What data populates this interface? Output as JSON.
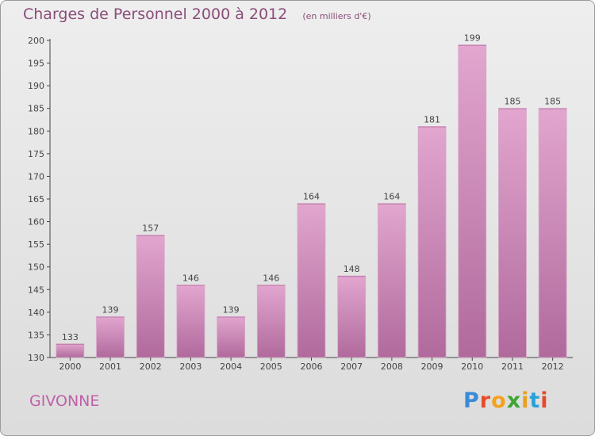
{
  "header": {
    "title": "Charges de Personnel 2000 à 2012",
    "unit": "(en milliers d'€)"
  },
  "footer": {
    "town": "GIVONNE",
    "logo": {
      "letters": [
        "P",
        "r",
        "o",
        "x",
        "i",
        "t",
        "i"
      ],
      "colors": [
        "#3a8ad8",
        "#e84a2a",
        "#f3a21c",
        "#3fa535",
        "#e8a01c",
        "#2aa0d8",
        "#e8482a"
      ]
    }
  },
  "colors": {
    "bar_top": "#e2a6cf",
    "bar_bottom": "#b06a9c",
    "title": "#8a4d78",
    "town": "#c060a8"
  },
  "chart_data": {
    "type": "bar",
    "title": "Charges de Personnel 2000 à 2012",
    "subtitle": "(en milliers d'€)",
    "categories": [
      "2000",
      "2001",
      "2002",
      "2003",
      "2004",
      "2005",
      "2006",
      "2007",
      "2008",
      "2009",
      "2010",
      "2011",
      "2012"
    ],
    "values": [
      133,
      139,
      157,
      146,
      139,
      146,
      164,
      148,
      164,
      181,
      199,
      185,
      185
    ],
    "ylim": [
      130,
      200
    ],
    "yticks": [
      130,
      135,
      140,
      145,
      150,
      155,
      160,
      165,
      170,
      175,
      180,
      185,
      190,
      195,
      200
    ],
    "grid": false,
    "legend": "none",
    "data_labels": true
  }
}
